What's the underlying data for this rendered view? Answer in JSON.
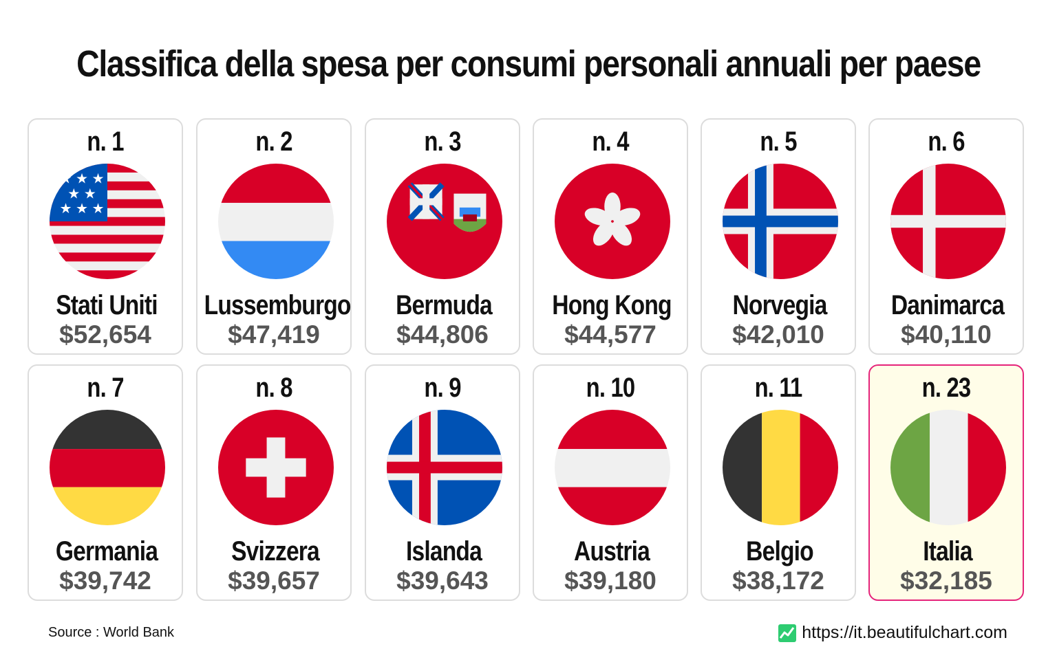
{
  "title": "Classifica della spesa per consumi personali annuali per paese",
  "chart_data": {
    "type": "table",
    "title": "Classifica della spesa per consumi personali annuali per paese",
    "columns": [
      "rank",
      "country",
      "value"
    ],
    "rows": [
      {
        "rank": "n. 1",
        "country": "Stati Uniti",
        "value": "$52,654",
        "flag": "usa-flag-icon"
      },
      {
        "rank": "n. 2",
        "country": "Lussemburgo",
        "value": "$47,419",
        "flag": "luxembourg-flag-icon"
      },
      {
        "rank": "n. 3",
        "country": "Bermuda",
        "value": "$44,806",
        "flag": "bermuda-flag-icon"
      },
      {
        "rank": "n. 4",
        "country": "Hong Kong",
        "value": "$44,577",
        "flag": "hong-kong-flag-icon"
      },
      {
        "rank": "n. 5",
        "country": "Norvegia",
        "value": "$42,010",
        "flag": "norway-flag-icon"
      },
      {
        "rank": "n. 6",
        "country": "Danimarca",
        "value": "$40,110",
        "flag": "denmark-flag-icon"
      },
      {
        "rank": "n. 7",
        "country": "Germania",
        "value": "$39,742",
        "flag": "germany-flag-icon"
      },
      {
        "rank": "n. 8",
        "country": "Svizzera",
        "value": "$39,657",
        "flag": "switzerland-flag-icon"
      },
      {
        "rank": "n. 9",
        "country": "Islanda",
        "value": "$39,643",
        "flag": "iceland-flag-icon"
      },
      {
        "rank": "n. 10",
        "country": "Austria",
        "value": "$39,180",
        "flag": "austria-flag-icon"
      },
      {
        "rank": "n. 11",
        "country": "Belgio",
        "value": "$38,172",
        "flag": "belgium-flag-icon"
      },
      {
        "rank": "n. 23",
        "country": "Italia",
        "value": "$32,185",
        "flag": "italy-flag-icon",
        "highlighted": true
      }
    ]
  },
  "colors": {
    "highlight_border": "#e5237a",
    "highlight_background": "#fffde8",
    "card_border": "#dcdcdc",
    "value_text": "#555555"
  },
  "footer": {
    "source": "Source : World Bank",
    "site": "https://it.beautifulchart.com",
    "site_icon": "chart-logo-icon"
  }
}
